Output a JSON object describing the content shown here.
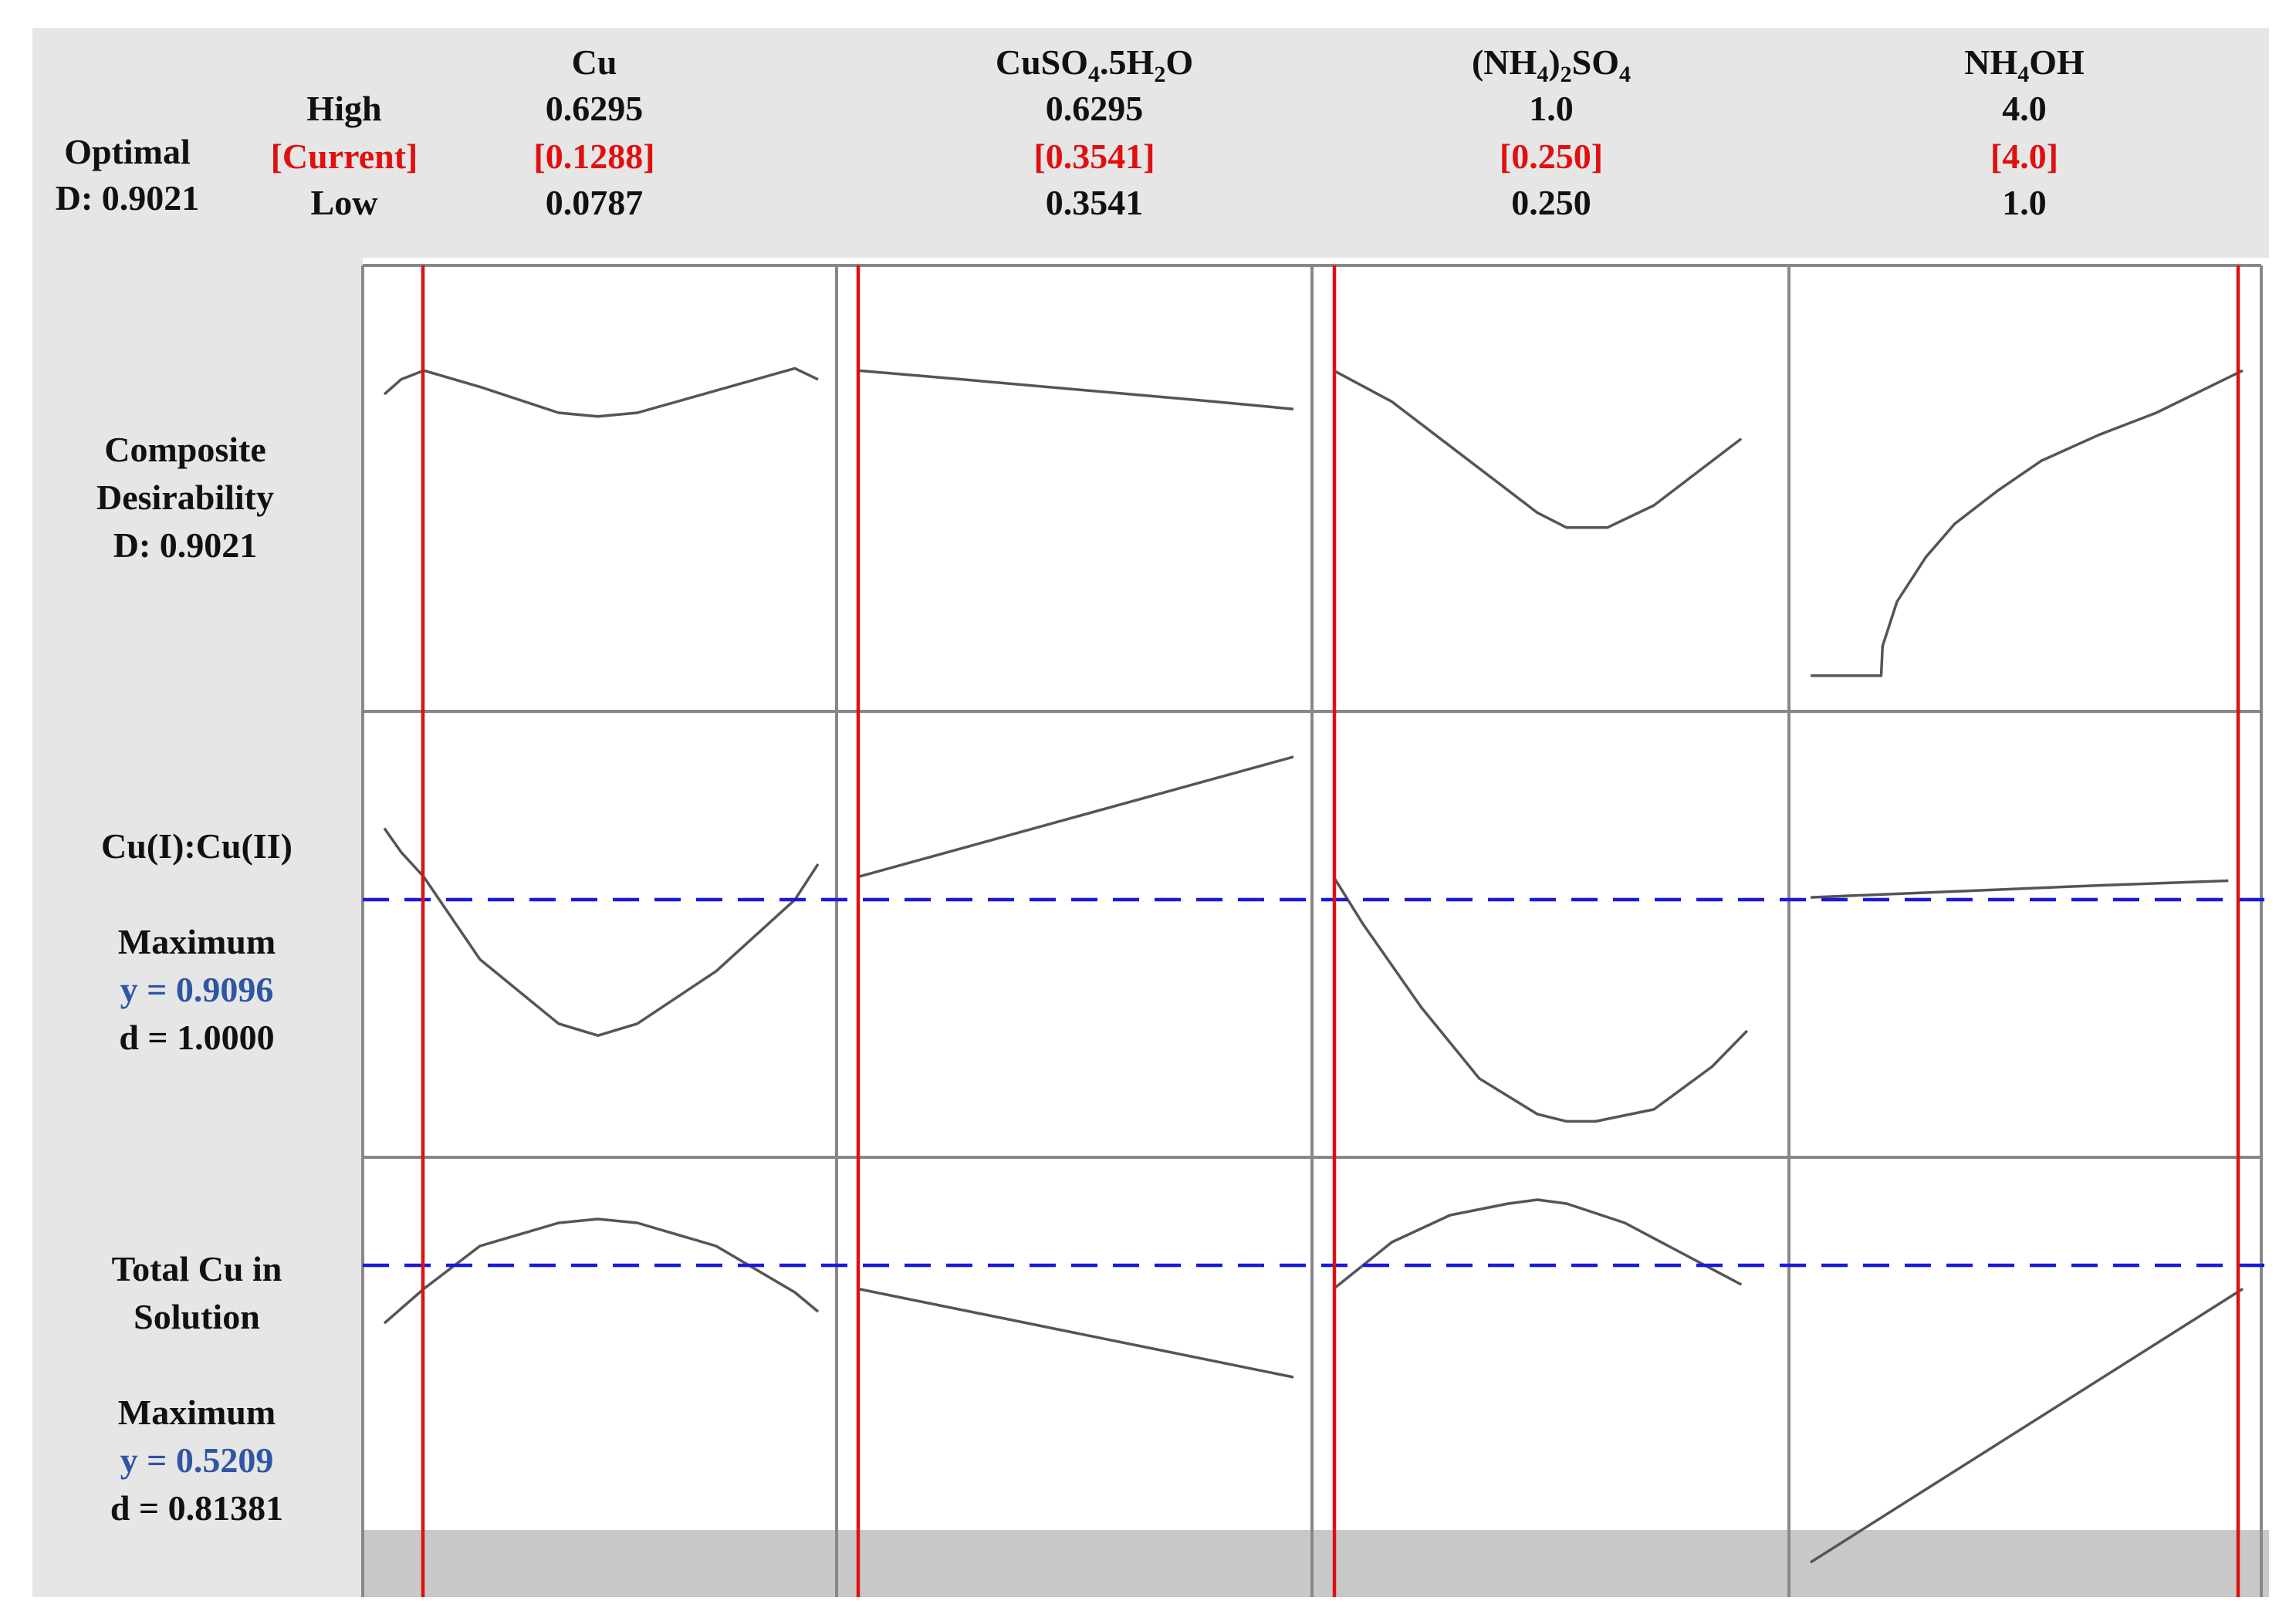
{
  "optimal": {
    "label": "Optimal",
    "d_text": "D: 0.9021"
  },
  "row_labels": {
    "high": "High",
    "current": "[Current]",
    "low": "Low"
  },
  "colors": {
    "current_red": "#e01010",
    "target_blue": "#1a1ae0",
    "y_value_blue": "#2f55a4",
    "curve": "#555555",
    "header_bg": "#e6e6e6",
    "grid": "#888888"
  },
  "factors": [
    {
      "name_parts": [
        [
          "Cu",
          "n"
        ]
      ],
      "high": "0.6295",
      "current": "[0.1288]",
      "low": "0.0787"
    },
    {
      "name_parts": [
        [
          "CuSO",
          "n"
        ],
        [
          "4",
          "sub"
        ],
        [
          ".5H",
          "n"
        ],
        [
          "2",
          "sub"
        ],
        [
          "O",
          "n"
        ]
      ],
      "high": "0.6295",
      "current": "[0.3541]",
      "low": "0.3541"
    },
    {
      "name_parts": [
        [
          "(NH",
          "n"
        ],
        [
          "4",
          "sub"
        ],
        [
          ")",
          "n"
        ],
        [
          "2",
          "sub"
        ],
        [
          "SO",
          "n"
        ],
        [
          "4",
          "sub"
        ]
      ],
      "high": "1.0",
      "current": "[0.250]",
      "low": "0.250"
    },
    {
      "name_parts": [
        [
          "NH",
          "n"
        ],
        [
          "4",
          "sub"
        ],
        [
          "OH",
          "n"
        ]
      ],
      "high": "4.0",
      "current": "[4.0]",
      "low": "1.0"
    }
  ],
  "responses": [
    {
      "lines": [
        "Composite",
        "Desirability",
        "D: 0.9021"
      ],
      "y_text": "",
      "d_text": ""
    },
    {
      "lines": [
        "Cu(I):Cu(II)",
        "",
        "Maximum"
      ],
      "y_text": "y = 0.9096",
      "d_text": "d = 1.0000"
    },
    {
      "lines": [
        "Total Cu in",
        "Solution",
        "",
        "Maximum"
      ],
      "y_text": "y = 0.5209",
      "d_text": "d = 0.81381"
    }
  ],
  "chart_data": {
    "type": "line",
    "title": "",
    "xlabel": "",
    "ylabel": "",
    "grid": true,
    "columns": [
      "Cu",
      "CuSO4.5H2O",
      "(NH4)2SO4",
      "NH4OH"
    ],
    "column_ranges": [
      [
        0.0787,
        0.6295
      ],
      [
        0.3541,
        0.6295
      ],
      [
        0.25,
        1.0
      ],
      [
        1.0,
        4.0
      ]
    ],
    "current_settings": [
      0.1288,
      0.3541,
      0.25,
      4.0
    ],
    "rows": [
      "Composite Desirability",
      "Cu(I):Cu(II)",
      "Total Cu in Solution"
    ],
    "reference_lines": [
      null,
      0.9096,
      0.5209
    ],
    "panels": [
      [
        {
          "x": [
            0.0787,
            0.1,
            0.1288,
            0.2,
            0.3,
            0.35,
            0.4,
            0.5,
            0.6,
            0.6295
          ],
          "y": [
            0.87,
            0.89,
            0.9021,
            0.88,
            0.845,
            0.84,
            0.845,
            0.875,
            0.905,
            0.89
          ]
        },
        {
          "x": [
            0.3541,
            0.42,
            0.5,
            0.58,
            0.6295
          ],
          "y": [
            0.9021,
            0.89,
            0.875,
            0.86,
            0.85
          ]
        },
        {
          "x": [
            0.25,
            0.35,
            0.45,
            0.55,
            0.6,
            0.65,
            0.72,
            0.8,
            0.9,
            0.95
          ],
          "y": [
            0.9021,
            0.86,
            0.8,
            0.74,
            0.71,
            0.69,
            0.69,
            0.72,
            0.78,
            0.81
          ]
        },
        {
          "x": [
            1.0,
            1.35,
            1.49,
            1.5,
            1.6,
            1.8,
            2.0,
            2.3,
            2.6,
            3.0,
            3.4,
            4.0
          ],
          "y": [
            0.49,
            0.49,
            0.49,
            0.53,
            0.59,
            0.65,
            0.695,
            0.74,
            0.78,
            0.815,
            0.845,
            0.9021
          ]
        }
      ],
      [
        {
          "x": [
            0.0787,
            0.1,
            0.1288,
            0.2,
            0.3,
            0.35,
            0.4,
            0.5,
            0.6,
            0.6295
          ],
          "y": [
            0.93,
            0.92,
            0.9096,
            0.875,
            0.848,
            0.843,
            0.848,
            0.87,
            0.9,
            0.915
          ]
        },
        {
          "x": [
            0.3541,
            0.6295
          ],
          "y": [
            0.9096,
            0.96
          ]
        },
        {
          "x": [
            0.25,
            0.3,
            0.4,
            0.5,
            0.6,
            0.65,
            0.7,
            0.8,
            0.9,
            0.96
          ],
          "y": [
            0.9096,
            0.89,
            0.855,
            0.825,
            0.81,
            0.807,
            0.807,
            0.812,
            0.83,
            0.845
          ]
        },
        {
          "x": [
            1.0,
            2.0,
            3.0,
            3.9
          ],
          "y": [
            0.901,
            0.9035,
            0.906,
            0.908
          ]
        }
      ],
      [
        {
          "x": [
            0.0787,
            0.1288,
            0.2,
            0.3,
            0.35,
            0.4,
            0.5,
            0.6,
            0.6295
          ],
          "y": [
            0.512,
            0.5209,
            0.532,
            0.538,
            0.539,
            0.538,
            0.532,
            0.52,
            0.515
          ]
        },
        {
          "x": [
            0.3541,
            0.6295
          ],
          "y": [
            0.5209,
            0.498
          ]
        },
        {
          "x": [
            0.25,
            0.35,
            0.45,
            0.55,
            0.6,
            0.65,
            0.75,
            0.85,
            0.95
          ],
          "y": [
            0.5209,
            0.533,
            0.54,
            0.543,
            0.544,
            0.543,
            0.538,
            0.53,
            0.522
          ]
        },
        {
          "x": [
            1.0,
            4.0
          ],
          "y": [
            0.45,
            0.5209
          ]
        }
      ]
    ],
    "row_y_ranges": [
      [
        0.47,
        0.97
      ],
      [
        0.8,
        0.97
      ],
      [
        0.443,
        0.55
      ]
    ]
  }
}
